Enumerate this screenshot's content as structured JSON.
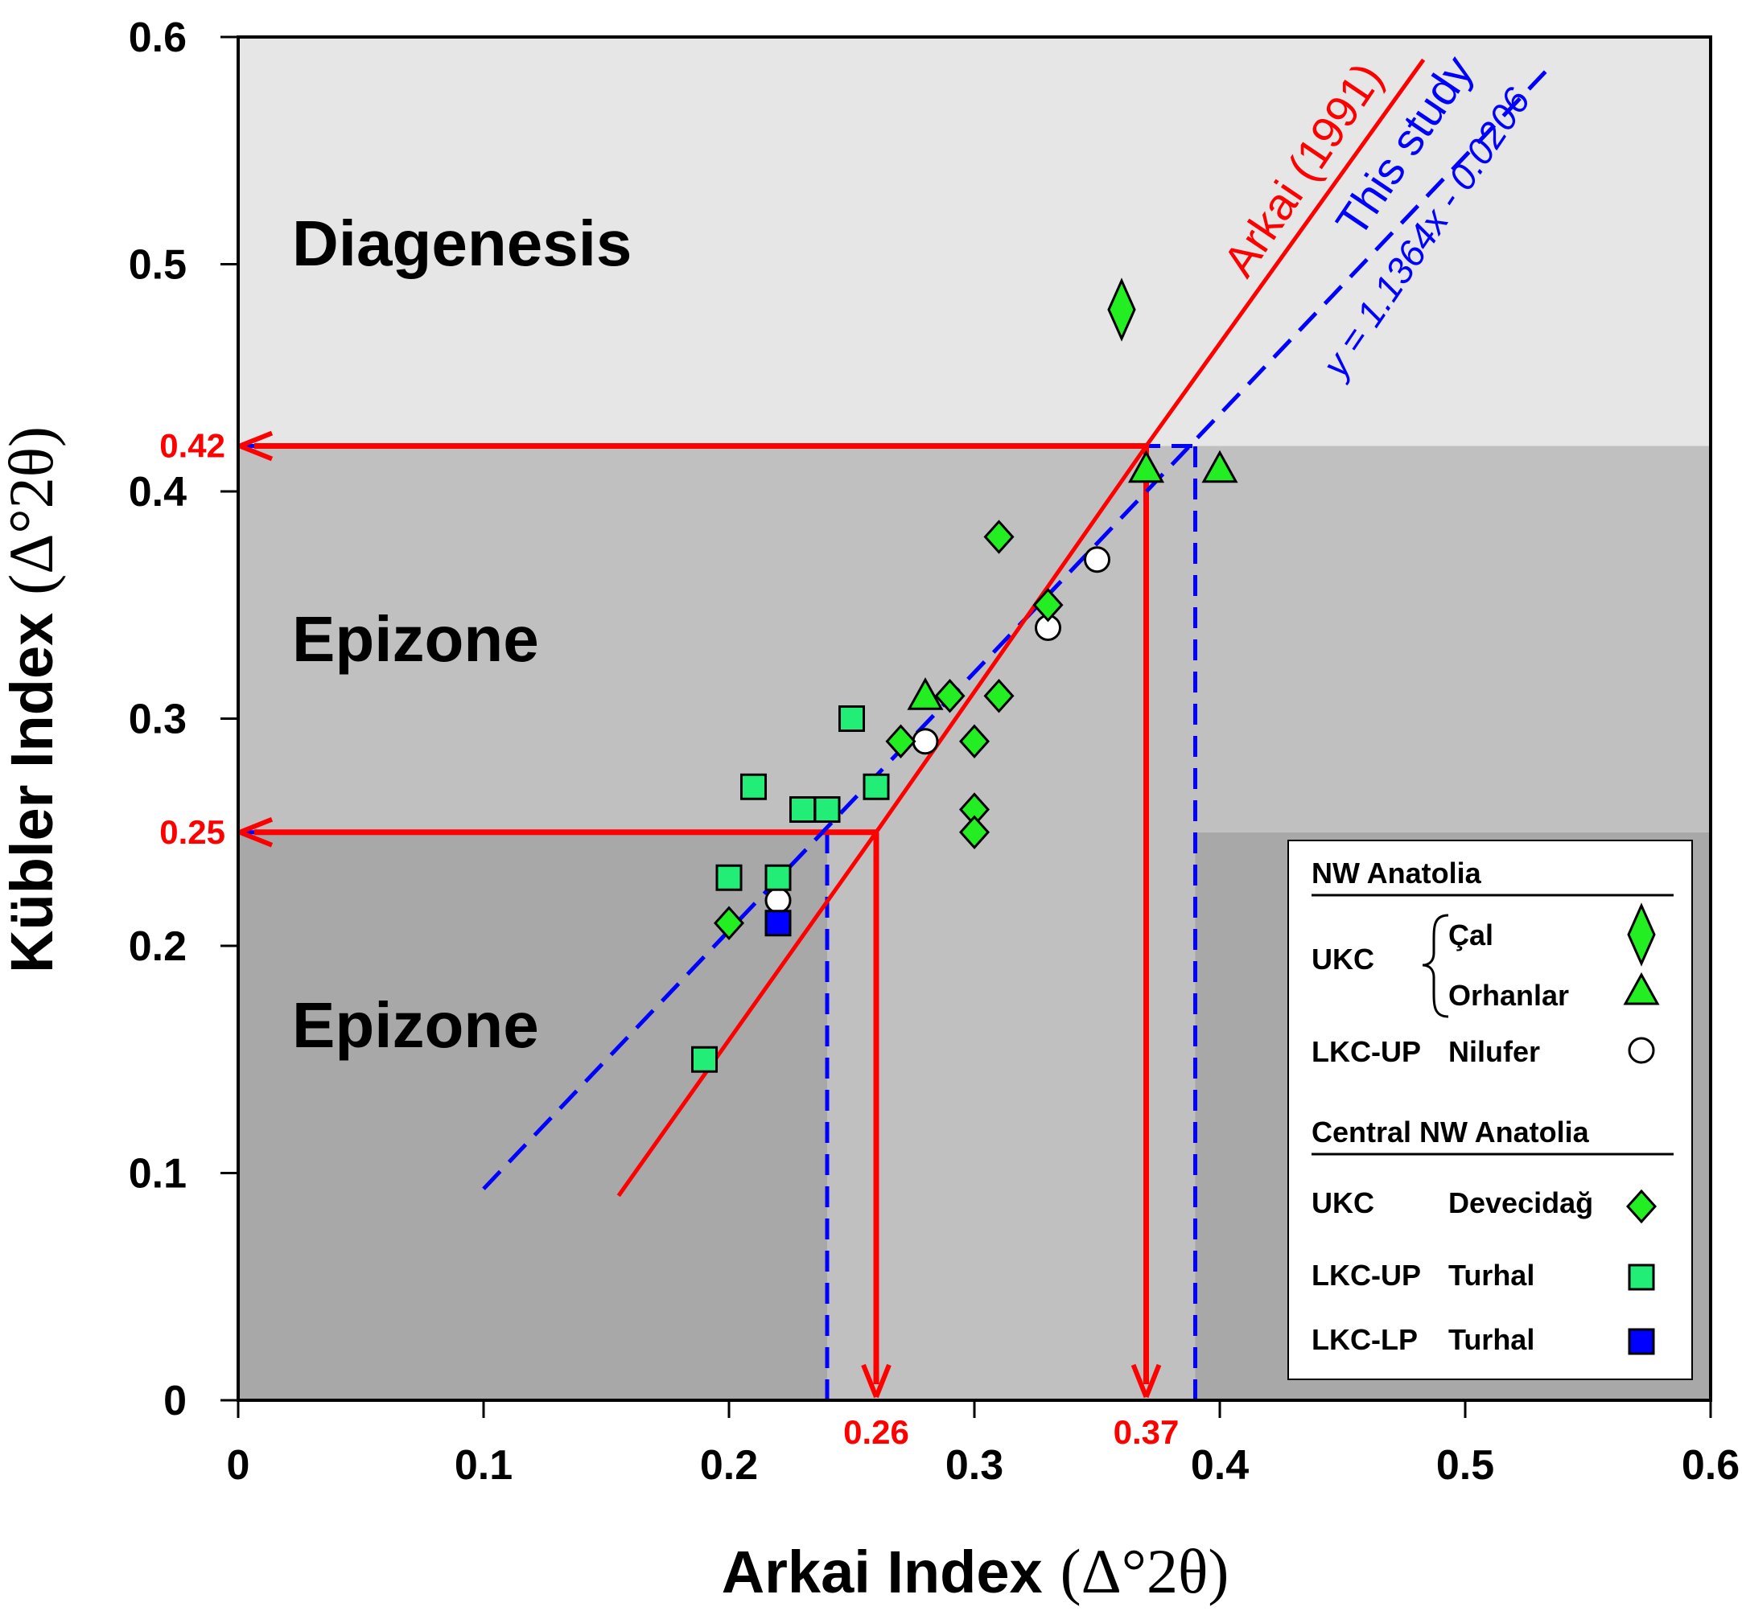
{
  "chart_data": {
    "type": "scatter",
    "xlabel": "Arkai Index",
    "xlabel_unit": "(Δ°2θ)",
    "ylabel": "Kübler Index",
    "ylabel_unit": "(Δ°2θ)",
    "xlim": [
      0,
      0.6
    ],
    "ylim": [
      0,
      0.6
    ],
    "x_ticks": [
      "0",
      "0.1",
      "0.2",
      "0.3",
      "0.4",
      "0.5",
      "0.6"
    ],
    "y_ticks": [
      "0",
      "0.1",
      "0.2",
      "0.3",
      "0.4",
      "0.5",
      "0.6"
    ],
    "zones": [
      {
        "label": "Diagenesis",
        "ki_from": 0.42,
        "ki_to": 0.6,
        "color": "#e6e6e6"
      },
      {
        "label": "Epizone",
        "ki_from": 0.25,
        "ki_to": 0.42,
        "color": "#c0c0c0"
      },
      {
        "label": "Epizone",
        "ki_from": 0,
        "ki_to": 0.25,
        "color": "#a8a8a8"
      }
    ],
    "lines": {
      "arkai": {
        "label": "Arkai (1991)",
        "color": "#ff0000",
        "points": [
          [
            0.155,
            0.09
          ],
          [
            0.26,
            0.25
          ],
          [
            0.37,
            0.42
          ],
          [
            0.483,
            0.59
          ]
        ]
      },
      "this_study": {
        "label": "This study",
        "equation": "y = 1.1364x - 0.0206",
        "color": "#0000ff",
        "slope": 1.1364,
        "intercept": -0.0206,
        "x_range": [
          0.1,
          0.535
        ]
      }
    },
    "guides": {
      "red_h": [
        {
          "y": 0.42,
          "x_from": 0.37
        },
        {
          "y": 0.25,
          "x_from": 0.26
        }
      ],
      "red_v": [
        {
          "x": 0.26,
          "y_from": 0.25
        },
        {
          "x": 0.37,
          "y_from": 0.42
        }
      ],
      "blue_h": [
        {
          "y": 0.42,
          "x_from": 0,
          "x_to": 0.39
        },
        {
          "y": 0.25,
          "x_from": 0,
          "x_to": 0.24
        }
      ],
      "blue_v": [
        {
          "x": 0.24,
          "y_from": 0,
          "y_to": 0.25
        },
        {
          "x": 0.39,
          "y_from": 0,
          "y_to": 0.42
        }
      ]
    },
    "callouts": [
      {
        "label": "0.42",
        "axis": "y",
        "value": 0.42
      },
      {
        "label": "0.25",
        "axis": "y",
        "value": 0.25
      },
      {
        "label": "0.26",
        "axis": "x",
        "value": 0.26
      },
      {
        "label": "0.37",
        "axis": "x",
        "value": 0.37
      }
    ],
    "series": [
      {
        "name": "Çal",
        "region": "NW Anatolia",
        "unit": "UKC",
        "marker": "tall-diamond",
        "color": "#22ee22",
        "points": [
          [
            0.36,
            0.48
          ]
        ]
      },
      {
        "name": "Orhanlar",
        "region": "NW Anatolia",
        "unit": "UKC",
        "marker": "triangle",
        "color": "#22ee22",
        "points": [
          [
            0.37,
            0.41
          ],
          [
            0.4,
            0.41
          ],
          [
            0.28,
            0.31
          ]
        ]
      },
      {
        "name": "Nilufer",
        "region": "NW Anatolia",
        "unit": "LKC-UP",
        "marker": "circle",
        "color": "#ffffff",
        "points": [
          [
            0.35,
            0.37
          ],
          [
            0.33,
            0.34
          ],
          [
            0.28,
            0.29
          ],
          [
            0.22,
            0.22
          ]
        ]
      },
      {
        "name": "Devecidağ",
        "region": "Central NW Anatolia",
        "unit": "UKC",
        "marker": "diamond",
        "color": "#22ee22",
        "points": [
          [
            0.31,
            0.38
          ],
          [
            0.33,
            0.35
          ],
          [
            0.29,
            0.31
          ],
          [
            0.31,
            0.31
          ],
          [
            0.27,
            0.29
          ],
          [
            0.3,
            0.29
          ],
          [
            0.3,
            0.26
          ],
          [
            0.3,
            0.25
          ],
          [
            0.2,
            0.21
          ]
        ]
      },
      {
        "name": "Turhal",
        "region": "Central NW Anatolia",
        "unit": "LKC-UP",
        "marker": "square",
        "color": "#22ee77",
        "points": [
          [
            0.25,
            0.3
          ],
          [
            0.21,
            0.27
          ],
          [
            0.26,
            0.27
          ],
          [
            0.23,
            0.26
          ],
          [
            0.24,
            0.26
          ],
          [
            0.2,
            0.23
          ],
          [
            0.22,
            0.23
          ],
          [
            0.19,
            0.15
          ]
        ]
      },
      {
        "name": "Turhal",
        "region": "Central NW Anatolia",
        "unit": "LKC-LP",
        "marker": "square",
        "color": "#0000ff",
        "points": [
          [
            0.22,
            0.21
          ]
        ]
      }
    ],
    "legend": {
      "position": "bottom-right",
      "sections": [
        {
          "title": "NW Anatolia",
          "rows": [
            {
              "unit": "UKC",
              "name": "Çal",
              "marker": "tall-diamond",
              "color": "#22ee22"
            },
            {
              "unit": "",
              "name": "Orhanlar",
              "marker": "triangle",
              "color": "#22ee22"
            },
            {
              "unit": "LKC-UP",
              "name": "Nilufer",
              "marker": "circle",
              "color": "#ffffff"
            }
          ]
        },
        {
          "title": "Central NW Anatolia",
          "rows": [
            {
              "unit": "UKC",
              "name": "Devecidağ",
              "marker": "diamond",
              "color": "#22ee22"
            },
            {
              "unit": "LKC-UP",
              "name": "Turhal",
              "marker": "square",
              "color": "#22ee77"
            },
            {
              "unit": "LKC-LP",
              "name": "Turhal",
              "marker": "square",
              "color": "#0000ff"
            }
          ]
        }
      ]
    }
  }
}
